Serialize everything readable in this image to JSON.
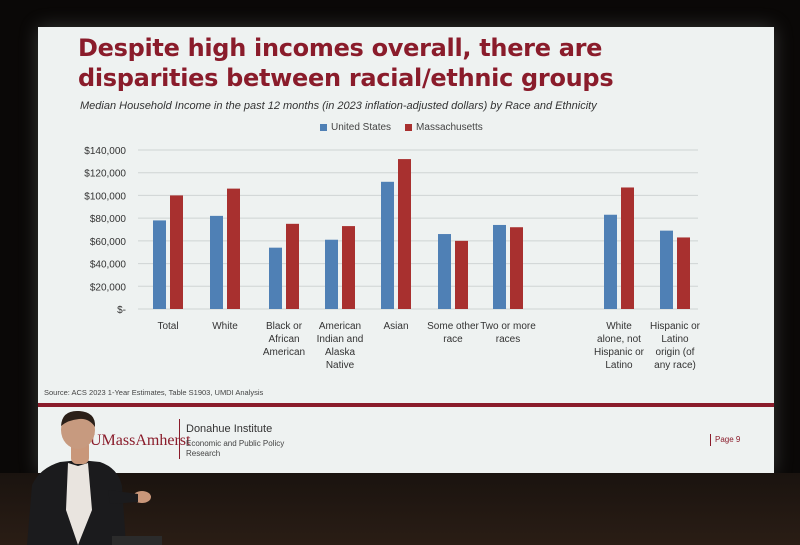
{
  "slide": {
    "title": "Despite high incomes overall, there are disparities between racial/ethnic groups",
    "source": "Source: ACS 2023 1-Year Estimates, Table S1903, UMDI Analysis",
    "footer": {
      "logo": "UMassAmherst",
      "institute": "Donahue Institute",
      "subtitle": "Economic and Public Policy Research",
      "page": "Page 9"
    }
  },
  "colors": {
    "title": "#8a1c2b",
    "us_bar": "#4f80b5",
    "ma_bar": "#a8302f",
    "rule": "#8a1c2b",
    "screen": "#eef2f1"
  },
  "chart_data": {
    "type": "bar",
    "title": "Median Household Income in the past 12 months (in 2023 inflation-adjusted dollars) by Race and Ethnicity",
    "categories": [
      "Total",
      "White",
      "Black or African American",
      "American Indian and Alaska Native",
      "Asian",
      "Some other race",
      "Two or more races",
      "White alone, not Hispanic or Latino",
      "Hispanic or Latino origin (of any race)"
    ],
    "series": [
      {
        "name": "United States",
        "values": [
          78000,
          82000,
          54000,
          61000,
          112000,
          66000,
          74000,
          83000,
          69000
        ]
      },
      {
        "name": "Massachusetts",
        "values": [
          100000,
          106000,
          75000,
          73000,
          132000,
          60000,
          72000,
          107000,
          63000
        ]
      }
    ],
    "y_ticks": [
      "$140,000",
      "$120,000",
      "$100,000",
      "$80,000",
      "$60,000",
      "$40,000",
      "$20,000",
      "$-"
    ],
    "ylim": [
      0,
      140000
    ],
    "grid": true,
    "legend": "top-center"
  }
}
